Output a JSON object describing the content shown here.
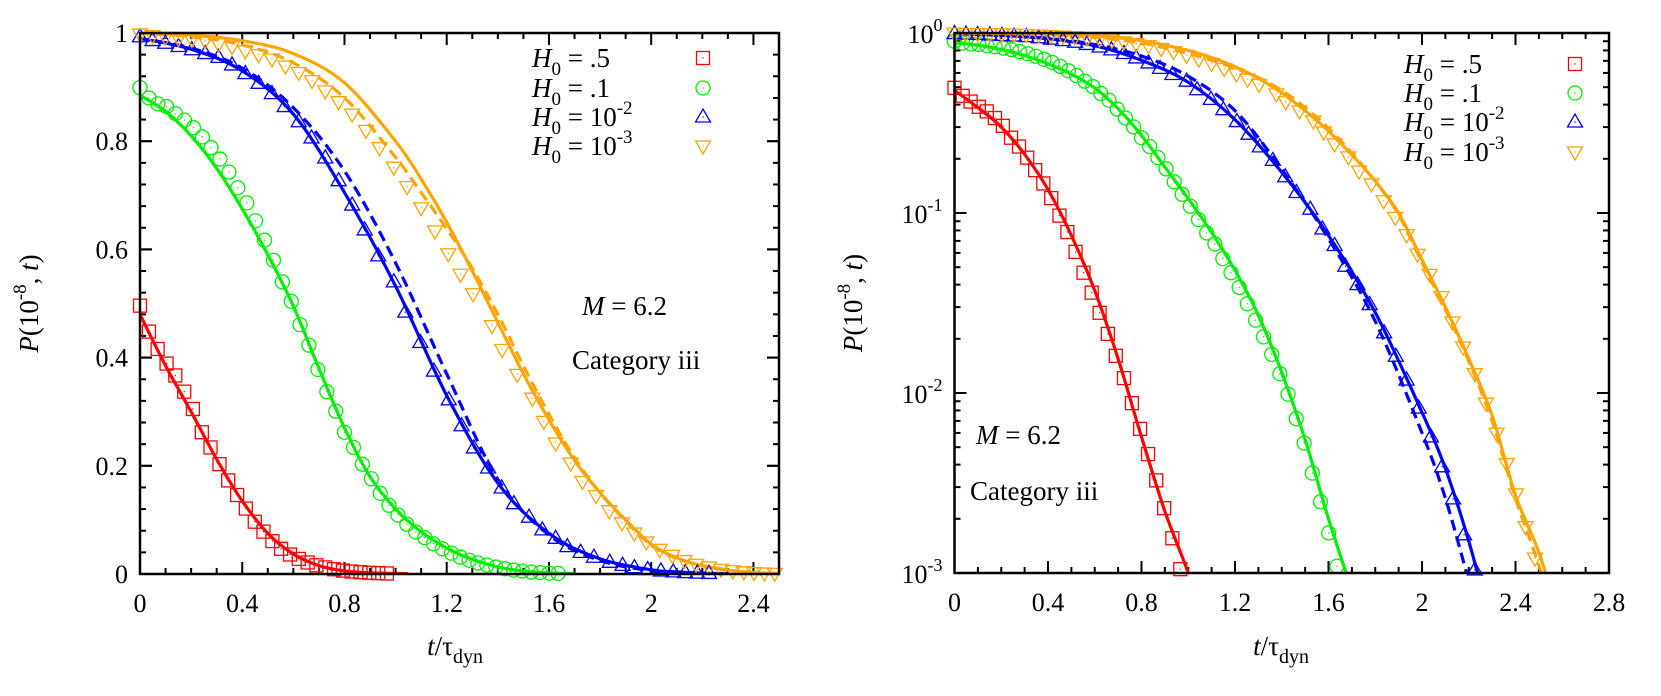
{
  "chart_data": {
    "type": "line",
    "colors": {
      "red": "#ff0000",
      "green": "#00ee00",
      "blue": "#0000ff",
      "orange": "#ffa500"
    },
    "legend": [
      {
        "sym": "H",
        "sub": "0",
        "eq": " =  .5",
        "sup": "",
        "color": "#ff0000",
        "marker": "square"
      },
      {
        "sym": "H",
        "sub": "0",
        "eq": " =  .1",
        "sup": "",
        "color": "#00ee00",
        "marker": "circle"
      },
      {
        "sym": "H",
        "sub": "0",
        "eq": " = 10",
        "sup": "-2",
        "color": "#0000ff",
        "marker": "triangle-up"
      },
      {
        "sym": "H",
        "sub": "0",
        "eq": " = 10",
        "sup": "-3",
        "color": "#ffa500",
        "marker": "triangle-down"
      }
    ],
    "legend_placement": "top-right",
    "annotations": {
      "m_var": "M",
      "m_eq": " = 6.2",
      "category": "Category iii"
    },
    "xlabel": {
      "var": "t",
      "slash": "/τ",
      "sub": "dyn"
    },
    "ylabel": {
      "func": "P",
      "open": "(10",
      "exp": "-8",
      "comma": ", ",
      "var": "t",
      "close": ")"
    },
    "series": [
      {
        "name": "H0 = .5",
        "color": "#ff0000",
        "marker": "square",
        "x": [
          0,
          0.035,
          0.069,
          0.104,
          0.138,
          0.173,
          0.207,
          0.242,
          0.276,
          0.311,
          0.345,
          0.38,
          0.414,
          0.449,
          0.483,
          0.518,
          0.552,
          0.587,
          0.621,
          0.656,
          0.69,
          0.725,
          0.759,
          0.794,
          0.828,
          0.863,
          0.897,
          0.932,
          0.966
        ],
        "y": [
          0.496,
          0.448,
          0.416,
          0.389,
          0.367,
          0.337,
          0.305,
          0.262,
          0.234,
          0.203,
          0.173,
          0.146,
          0.121,
          0.0967,
          0.0784,
          0.0608,
          0.0466,
          0.0361,
          0.0279,
          0.0213,
          0.0161,
          0.0121,
          0.00878,
          0.00632,
          0.00458,
          0.00327,
          0.00229,
          0.00156,
          0.00105
        ]
      },
      {
        "name": "H0 = .1",
        "color": "#00ee00",
        "marker": "circle",
        "x": [
          0,
          0.035,
          0.07,
          0.104,
          0.139,
          0.174,
          0.209,
          0.244,
          0.278,
          0.313,
          0.348,
          0.383,
          0.418,
          0.452,
          0.487,
          0.522,
          0.557,
          0.592,
          0.626,
          0.661,
          0.696,
          0.731,
          0.766,
          0.8,
          0.835,
          0.87,
          0.905,
          0.94,
          0.974,
          1.009,
          1.044,
          1.079,
          1.114,
          1.148,
          1.183,
          1.218,
          1.253,
          1.288,
          1.322,
          1.357,
          1.392,
          1.427,
          1.462,
          1.496,
          1.531,
          1.566,
          1.601,
          1.636
        ],
        "y": [
          0.899,
          0.88,
          0.869,
          0.864,
          0.851,
          0.839,
          0.825,
          0.808,
          0.788,
          0.767,
          0.743,
          0.714,
          0.686,
          0.653,
          0.617,
          0.58,
          0.54,
          0.504,
          0.461,
          0.423,
          0.378,
          0.337,
          0.301,
          0.262,
          0.234,
          0.203,
          0.176,
          0.149,
          0.127,
          0.109,
          0.0919,
          0.0775,
          0.0673,
          0.0558,
          0.0466,
          0.0386,
          0.0313,
          0.0254,
          0.0205,
          0.0164,
          0.0128,
          0.00984,
          0.0072,
          0.00527,
          0.00359,
          0.00249,
          0.00167,
          0.00109
        ]
      },
      {
        "name": "H0 = 10-2",
        "color": "#0000ff",
        "marker": "triangle-up",
        "x": [
          0,
          0.049,
          0.099,
          0.151,
          0.203,
          0.255,
          0.307,
          0.36,
          0.412,
          0.464,
          0.516,
          0.566,
          0.621,
          0.671,
          0.725,
          0.777,
          0.83,
          0.879,
          0.932,
          0.993,
          1.038,
          1.097,
          1.15,
          1.208,
          1.258,
          1.306,
          1.362,
          1.415,
          1.463,
          1.522,
          1.574,
          1.626,
          1.672,
          1.724,
          1.776,
          1.838,
          1.888,
          1.934,
          1.986,
          2.038,
          2.086,
          2.133,
          2.18,
          2.226
        ],
        "y": [
          0.993,
          0.986,
          0.981,
          0.975,
          0.969,
          0.962,
          0.955,
          0.941,
          0.925,
          0.907,
          0.888,
          0.864,
          0.836,
          0.806,
          0.769,
          0.727,
          0.682,
          0.636,
          0.588,
          0.54,
          0.484,
          0.428,
          0.375,
          0.322,
          0.274,
          0.233,
          0.196,
          0.159,
          0.13,
          0.105,
          0.0815,
          0.066,
          0.0506,
          0.04,
          0.031,
          0.0216,
          0.016,
          0.0118,
          0.00825,
          0.0057,
          0.00389,
          0.00258,
          0.00163,
          0.00104
        ]
      },
      {
        "name": "H0 = 10-3",
        "color": "#ffa500",
        "marker": "triangle-down",
        "x": [
          0,
          0.049,
          0.099,
          0.151,
          0.203,
          0.255,
          0.307,
          0.36,
          0.412,
          0.464,
          0.516,
          0.569,
          0.621,
          0.673,
          0.725,
          0.777,
          0.83,
          0.884,
          0.937,
          0.993,
          1.045,
          1.1,
          1.154,
          1.206,
          1.254,
          1.303,
          1.377,
          1.417,
          1.476,
          1.535,
          1.58,
          1.626,
          1.685,
          1.731,
          1.784,
          1.836,
          1.886,
          1.934,
          1.981,
          2.033,
          2.083,
          2.13,
          2.176,
          2.226,
          2.273,
          2.319,
          2.362,
          2.402,
          2.443,
          2.483
        ],
        "y": [
          0.998,
          0.995,
          0.992,
          0.99,
          0.988,
          0.986,
          0.98,
          0.975,
          0.967,
          0.96,
          0.952,
          0.939,
          0.927,
          0.912,
          0.893,
          0.873,
          0.85,
          0.82,
          0.788,
          0.752,
          0.716,
          0.677,
          0.634,
          0.592,
          0.554,
          0.518,
          0.459,
          0.415,
          0.369,
          0.325,
          0.282,
          0.242,
          0.205,
          0.171,
          0.145,
          0.117,
          0.0946,
          0.0757,
          0.059,
          0.0456,
          0.0343,
          0.0248,
          0.018,
          0.0128,
          0.00879,
          0.00598,
          0.00405,
          0.00275,
          0.00181,
          0.00121
        ]
      }
    ],
    "fits": [
      {
        "series": 0,
        "style": "solid",
        "x": [
          0,
          0.1,
          0.2,
          0.3,
          0.4,
          0.5,
          0.6,
          0.7,
          0.8,
          0.9,
          1.0,
          1.05
        ],
        "y": [
          0.48,
          0.385,
          0.3,
          0.212,
          0.135,
          0.075,
          0.037,
          0.0155,
          0.0057,
          0.0022,
          0.001,
          0.0006
        ]
      },
      {
        "series": 1,
        "style": "solid",
        "x": [
          0,
          0.1,
          0.2,
          0.3,
          0.4,
          0.5,
          0.6,
          0.7,
          0.8,
          0.9,
          1.0,
          1.1,
          1.2,
          1.3,
          1.4,
          1.5,
          1.6,
          1.7
        ],
        "y": [
          0.885,
          0.855,
          0.81,
          0.75,
          0.675,
          0.59,
          0.495,
          0.38,
          0.27,
          0.18,
          0.12,
          0.078,
          0.048,
          0.027,
          0.013,
          0.0055,
          0.002,
          0.0008
        ]
      },
      {
        "series": 2,
        "style": "dashed",
        "x": [
          0,
          0.2,
          0.4,
          0.6,
          0.8,
          1.0,
          1.2,
          1.4,
          1.6,
          1.8,
          2.0,
          2.1,
          2.2,
          2.25
        ],
        "y": [
          0.99,
          0.972,
          0.935,
          0.862,
          0.745,
          0.575,
          0.37,
          0.175,
          0.072,
          0.025,
          0.006,
          0.0026,
          0.0009,
          0.0005
        ]
      },
      {
        "series": 2,
        "style": "solid",
        "x": [
          0,
          0.2,
          0.4,
          0.6,
          0.8,
          1.0,
          1.2,
          1.4,
          1.6,
          1.8,
          2.0,
          2.1,
          2.2,
          2.3
        ],
        "y": [
          0.99,
          0.97,
          0.93,
          0.85,
          0.705,
          0.532,
          0.33,
          0.168,
          0.075,
          0.028,
          0.0078,
          0.0038,
          0.0015,
          0.0005
        ]
      },
      {
        "series": 3,
        "style": "dashed",
        "x": [
          0,
          0.2,
          0.4,
          0.6,
          0.8,
          1.0,
          1.1,
          1.2,
          1.3,
          1.4,
          1.5,
          1.6,
          1.7,
          1.8,
          1.9,
          2.0,
          2.1,
          2.2,
          2.3,
          2.4,
          2.5,
          2.6
        ],
        "y": [
          1.0,
          0.993,
          0.978,
          0.945,
          0.88,
          0.77,
          0.705,
          0.638,
          0.565,
          0.48,
          0.385,
          0.295,
          0.215,
          0.15,
          0.098,
          0.053,
          0.029,
          0.015,
          0.007,
          0.0026,
          0.0011,
          0.0004
        ]
      },
      {
        "series": 3,
        "style": "solid",
        "x": [
          0,
          0.2,
          0.4,
          0.6,
          0.8,
          1.0,
          1.1,
          1.2,
          1.3,
          1.4,
          1.5,
          1.6,
          1.7,
          1.8,
          1.9,
          2.0,
          2.1,
          2.2,
          2.3,
          2.4,
          2.5,
          2.6
        ],
        "y": [
          1.0,
          0.996,
          0.986,
          0.962,
          0.908,
          0.8,
          0.73,
          0.65,
          0.56,
          0.465,
          0.37,
          0.285,
          0.21,
          0.15,
          0.1,
          0.055,
          0.03,
          0.0155,
          0.0075,
          0.0027,
          0.0013,
          0.0005
        ]
      }
    ],
    "panels": [
      {
        "yscale": "linear",
        "xlim": [
          0,
          2.5
        ],
        "ylim": [
          0,
          1
        ],
        "xticks": [
          0,
          0.4,
          0.8,
          1.2,
          1.6,
          2,
          2.4
        ],
        "xtick_labels": [
          "0",
          "0.4",
          "0.8",
          "1.2",
          "1.6",
          "2",
          "2.4"
        ],
        "x_minor_step": 0.1,
        "yticks": [
          0,
          0.2,
          0.4,
          0.6,
          0.8,
          1
        ],
        "ytick_labels": [
          "0",
          "0.2",
          "0.4",
          "0.6",
          "0.8",
          "1"
        ],
        "y_minor_step": 0.04,
        "annotation_placement": "center-right",
        "grid": false
      },
      {
        "yscale": "log",
        "xlim": [
          0,
          2.8
        ],
        "ylim": [
          0.001,
          1
        ],
        "xticks": [
          0,
          0.4,
          0.8,
          1.2,
          1.6,
          2,
          2.4,
          2.8
        ],
        "xtick_labels": [
          "0",
          "0.4",
          "0.8",
          "1.2",
          "1.6",
          "2",
          "2.4",
          "2.8"
        ],
        "x_minor_step": 0.1,
        "yticks": [
          1,
          0.1,
          0.01,
          0.001
        ],
        "ytick_labels": [
          {
            "base": "10",
            "exp": "0"
          },
          {
            "base": "10",
            "exp": "-1"
          },
          {
            "base": "10",
            "exp": "-2"
          },
          {
            "base": "10",
            "exp": "-3"
          }
        ],
        "annotation_placement": "bottom-left",
        "grid": false
      }
    ]
  }
}
